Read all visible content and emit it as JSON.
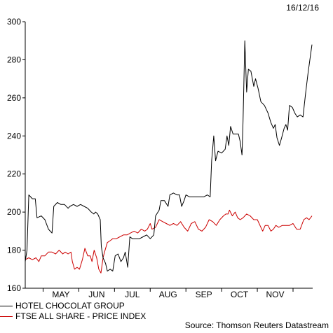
{
  "header": {
    "date": "16/12/16"
  },
  "source": "Source: Thomson Reuters Datastream",
  "chart_data": {
    "type": "line",
    "title": "",
    "xlabel": "",
    "ylabel": "",
    "ylim": [
      160,
      300
    ],
    "yticks": [
      160,
      180,
      200,
      220,
      240,
      260,
      280,
      300
    ],
    "xlim": [
      0,
      8.05
    ],
    "months": [
      "MAY",
      "JUN",
      "JUL",
      "AUG",
      "SEP",
      "OCT",
      "NOV"
    ],
    "grid": false,
    "legend_position": "bottom-left",
    "series": [
      {
        "name": "HOTEL CHOCOLAT GROUP",
        "color": "#000000",
        "points": [
          [
            0.0,
            174
          ],
          [
            0.05,
            180
          ],
          [
            0.1,
            209
          ],
          [
            0.2,
            207
          ],
          [
            0.28,
            207
          ],
          [
            0.33,
            197
          ],
          [
            0.45,
            198
          ],
          [
            0.55,
            196
          ],
          [
            0.65,
            191
          ],
          [
            0.75,
            189
          ],
          [
            0.8,
            203
          ],
          [
            0.9,
            205
          ],
          [
            1.0,
            204
          ],
          [
            1.1,
            204
          ],
          [
            1.2,
            202
          ],
          [
            1.25,
            203
          ],
          [
            1.35,
            204
          ],
          [
            1.45,
            203
          ],
          [
            1.55,
            204
          ],
          [
            1.65,
            203
          ],
          [
            1.75,
            202
          ],
          [
            1.85,
            200
          ],
          [
            1.92,
            199
          ],
          [
            1.97,
            200
          ],
          [
            2.03,
            199
          ],
          [
            2.1,
            196
          ],
          [
            2.13,
            182
          ],
          [
            2.18,
            176
          ],
          [
            2.25,
            173
          ],
          [
            2.3,
            169
          ],
          [
            2.38,
            170
          ],
          [
            2.45,
            169
          ],
          [
            2.52,
            177
          ],
          [
            2.6,
            178
          ],
          [
            2.68,
            174
          ],
          [
            2.75,
            176
          ],
          [
            2.8,
            179
          ],
          [
            2.87,
            171
          ],
          [
            2.93,
            187
          ],
          [
            3.0,
            186
          ],
          [
            3.1,
            186
          ],
          [
            3.2,
            186
          ],
          [
            3.3,
            187
          ],
          [
            3.4,
            188
          ],
          [
            3.5,
            186
          ],
          [
            3.6,
            188
          ],
          [
            3.65,
            198
          ],
          [
            3.75,
            201
          ],
          [
            3.8,
            206
          ],
          [
            3.9,
            206
          ],
          [
            4.0,
            203
          ],
          [
            4.05,
            209
          ],
          [
            4.15,
            210
          ],
          [
            4.25,
            209
          ],
          [
            4.32,
            209
          ],
          [
            4.38,
            203
          ],
          [
            4.45,
            206
          ],
          [
            4.5,
            209
          ],
          [
            4.6,
            208
          ],
          [
            4.7,
            208
          ],
          [
            4.8,
            208
          ],
          [
            4.9,
            208
          ],
          [
            5.0,
            208
          ],
          [
            5.1,
            209
          ],
          [
            5.18,
            208
          ],
          [
            5.22,
            227
          ],
          [
            5.28,
            240
          ],
          [
            5.33,
            227
          ],
          [
            5.4,
            232
          ],
          [
            5.5,
            231
          ],
          [
            5.6,
            233
          ],
          [
            5.65,
            240
          ],
          [
            5.7,
            235
          ],
          [
            5.75,
            245
          ],
          [
            5.82,
            241
          ],
          [
            5.9,
            241
          ],
          [
            5.97,
            241
          ],
          [
            6.02,
            237
          ],
          [
            6.07,
            230
          ],
          [
            6.1,
            248
          ],
          [
            6.15,
            290
          ],
          [
            6.2,
            263
          ],
          [
            6.25,
            275
          ],
          [
            6.32,
            274
          ],
          [
            6.4,
            266
          ],
          [
            6.45,
            270
          ],
          [
            6.52,
            265
          ],
          [
            6.6,
            258
          ],
          [
            6.7,
            256
          ],
          [
            6.8,
            252
          ],
          [
            6.88,
            247
          ],
          [
            6.95,
            244
          ],
          [
            7.0,
            246
          ],
          [
            7.05,
            239
          ],
          [
            7.12,
            235
          ],
          [
            7.18,
            239
          ],
          [
            7.25,
            244
          ],
          [
            7.3,
            246
          ],
          [
            7.35,
            243
          ],
          [
            7.4,
            256
          ],
          [
            7.48,
            255
          ],
          [
            7.55,
            252
          ],
          [
            7.62,
            250
          ],
          [
            7.7,
            251
          ],
          [
            7.78,
            250
          ],
          [
            7.85,
            262
          ],
          [
            7.92,
            273
          ],
          [
            8.0,
            284
          ],
          [
            8.03,
            288
          ]
        ]
      },
      {
        "name": "FTSE ALL SHARE - PRICE INDEX",
        "color": "#cc0000",
        "points": [
          [
            0.0,
            175
          ],
          [
            0.1,
            176
          ],
          [
            0.2,
            175
          ],
          [
            0.3,
            176
          ],
          [
            0.38,
            174
          ],
          [
            0.45,
            177
          ],
          [
            0.55,
            177
          ],
          [
            0.65,
            179
          ],
          [
            0.75,
            179
          ],
          [
            0.85,
            178
          ],
          [
            0.95,
            180
          ],
          [
            1.05,
            178
          ],
          [
            1.12,
            179
          ],
          [
            1.2,
            178
          ],
          [
            1.28,
            179
          ],
          [
            1.32,
            174
          ],
          [
            1.38,
            170
          ],
          [
            1.45,
            171
          ],
          [
            1.52,
            170
          ],
          [
            1.6,
            175
          ],
          [
            1.67,
            181
          ],
          [
            1.75,
            177
          ],
          [
            1.82,
            177
          ],
          [
            1.87,
            174
          ],
          [
            1.93,
            180
          ],
          [
            2.0,
            176
          ],
          [
            2.06,
            170
          ],
          [
            2.12,
            168
          ],
          [
            2.18,
            176
          ],
          [
            2.22,
            179
          ],
          [
            2.3,
            184
          ],
          [
            2.38,
            185
          ],
          [
            2.45,
            186
          ],
          [
            2.55,
            186
          ],
          [
            2.65,
            187
          ],
          [
            2.75,
            188
          ],
          [
            2.85,
            188
          ],
          [
            2.95,
            189
          ],
          [
            3.05,
            190
          ],
          [
            3.15,
            189
          ],
          [
            3.25,
            191
          ],
          [
            3.35,
            190
          ],
          [
            3.42,
            191
          ],
          [
            3.5,
            194
          ],
          [
            3.55,
            191
          ],
          [
            3.65,
            192
          ],
          [
            3.75,
            196
          ],
          [
            3.85,
            195
          ],
          [
            3.95,
            194
          ],
          [
            4.05,
            193
          ],
          [
            4.15,
            194
          ],
          [
            4.25,
            193
          ],
          [
            4.35,
            195
          ],
          [
            4.45,
            192
          ],
          [
            4.55,
            190
          ],
          [
            4.65,
            194
          ],
          [
            4.75,
            195
          ],
          [
            4.85,
            191
          ],
          [
            4.95,
            190
          ],
          [
            5.05,
            192
          ],
          [
            5.15,
            196
          ],
          [
            5.25,
            195
          ],
          [
            5.35,
            193
          ],
          [
            5.45,
            196
          ],
          [
            5.55,
            198
          ],
          [
            5.62,
            199
          ],
          [
            5.68,
            199
          ],
          [
            5.72,
            201
          ],
          [
            5.8,
            198
          ],
          [
            5.88,
            200
          ],
          [
            5.95,
            197
          ],
          [
            6.02,
            196
          ],
          [
            6.1,
            197
          ],
          [
            6.2,
            199
          ],
          [
            6.3,
            198
          ],
          [
            6.4,
            196
          ],
          [
            6.5,
            196
          ],
          [
            6.55,
            194
          ],
          [
            6.6,
            192
          ],
          [
            6.65,
            190
          ],
          [
            6.72,
            193
          ],
          [
            6.8,
            193
          ],
          [
            6.88,
            190
          ],
          [
            6.95,
            191
          ],
          [
            7.02,
            193
          ],
          [
            7.1,
            192
          ],
          [
            7.2,
            193
          ],
          [
            7.3,
            193
          ],
          [
            7.4,
            193
          ],
          [
            7.5,
            194
          ],
          [
            7.6,
            191
          ],
          [
            7.7,
            191
          ],
          [
            7.8,
            196
          ],
          [
            7.88,
            197
          ],
          [
            7.95,
            196
          ],
          [
            8.03,
            198
          ]
        ]
      }
    ]
  }
}
